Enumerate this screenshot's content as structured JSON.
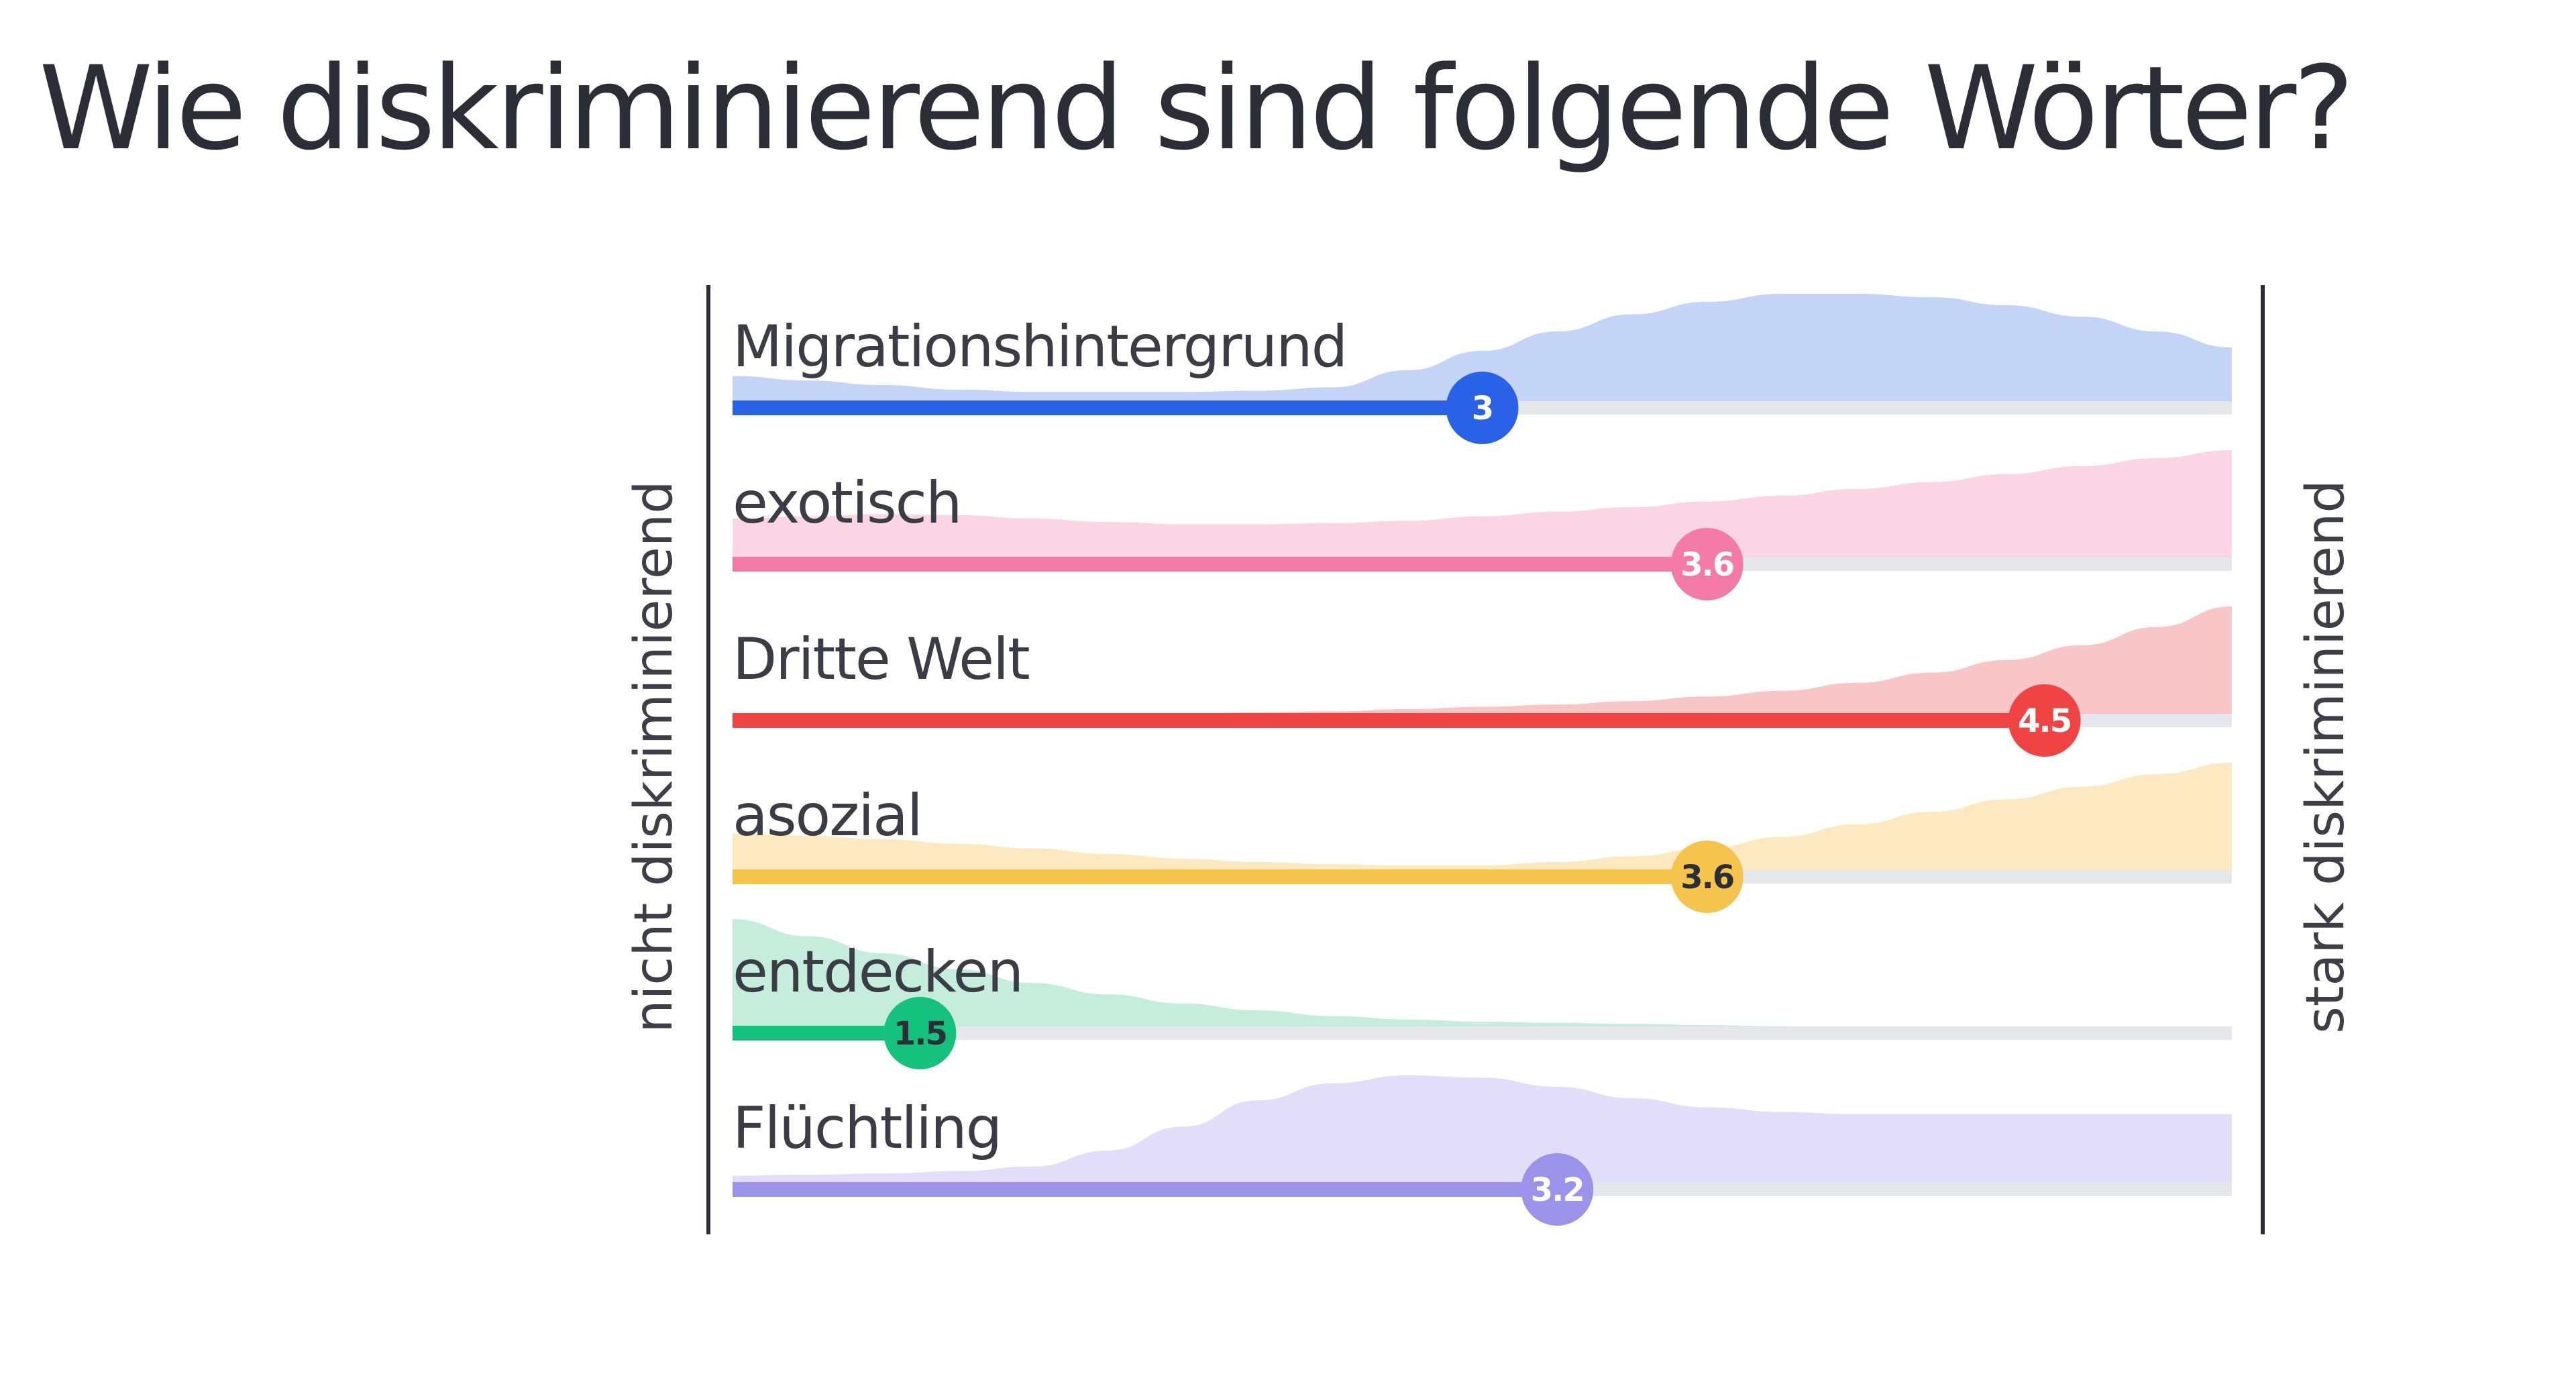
{
  "title": "Wie diskriminierend sind folgende Wörter?",
  "chart_data": {
    "type": "bar",
    "title": "Wie diskriminierend sind folgende Wörter?",
    "scale_min_label": "nicht diskriminierend",
    "scale_max_label": "stark diskriminierend",
    "xlim": [
      1,
      5
    ],
    "items": [
      {
        "label": "Migrationshintergrund",
        "value": 3,
        "value_label": "3",
        "bar_color": "#2962e6",
        "fill_color": "#c3d4f7",
        "marker_text_color": "#ffffff",
        "distribution": [
          0.28,
          0.24,
          0.2,
          0.16,
          0.14,
          0.14,
          0.14,
          0.15,
          0.18,
          0.33,
          0.5,
          0.67,
          0.82,
          0.93,
          1.0,
          1.0,
          0.97,
          0.9,
          0.8,
          0.67,
          0.53
        ]
      },
      {
        "label": "exotisch",
        "value": 3.6,
        "value_label": "3.6",
        "bar_color": "#f27aa5",
        "fill_color": "#fbd5e3",
        "marker_text_color": "#ffffff",
        "distribution": [
          0.4,
          0.42,
          0.44,
          0.43,
          0.4,
          0.37,
          0.35,
          0.35,
          0.36,
          0.38,
          0.42,
          0.46,
          0.5,
          0.55,
          0.6,
          0.66,
          0.72,
          0.79,
          0.86,
          0.93,
          1.0
        ]
      },
      {
        "label": "Dritte Welt",
        "value": 4.5,
        "value_label": "4.5",
        "bar_color": "#f04444",
        "fill_color": "#f8c6c6",
        "marker_text_color": "#ffffff",
        "distribution": [
          0.03,
          0.03,
          0.03,
          0.04,
          0.04,
          0.05,
          0.06,
          0.07,
          0.08,
          0.1,
          0.12,
          0.14,
          0.17,
          0.21,
          0.26,
          0.33,
          0.42,
          0.53,
          0.66,
          0.82,
          1.0
        ]
      },
      {
        "label": "asozial",
        "value": 3.6,
        "value_label": "3.6",
        "bar_color": "#f5c44c",
        "fill_color": "#fde9c1",
        "marker_text_color": "#2b2e36",
        "distribution": [
          0.38,
          0.36,
          0.33,
          0.29,
          0.25,
          0.2,
          0.16,
          0.13,
          0.11,
          0.1,
          0.1,
          0.13,
          0.18,
          0.25,
          0.35,
          0.46,
          0.57,
          0.68,
          0.79,
          0.9,
          1.0
        ]
      },
      {
        "label": "entdecken",
        "value": 1.5,
        "value_label": "1.5",
        "bar_color": "#15c27d",
        "fill_color": "#c6eddb",
        "marker_text_color": "#2b2e36",
        "distribution": [
          1.0,
          0.85,
          0.7,
          0.56,
          0.44,
          0.34,
          0.26,
          0.2,
          0.15,
          0.12,
          0.1,
          0.09,
          0.08,
          0.07,
          0.06,
          0.05,
          0.05,
          0.04,
          0.04,
          0.03,
          0.03
        ]
      },
      {
        "label": "Flüchtling",
        "value": 3.2,
        "value_label": "3.2",
        "bar_color": "#9b93ea",
        "fill_color": "#e2defa",
        "marker_text_color": "#ffffff",
        "distribution": [
          0.12,
          0.13,
          0.14,
          0.16,
          0.2,
          0.34,
          0.55,
          0.78,
          0.93,
          1.0,
          0.98,
          0.9,
          0.8,
          0.72,
          0.68,
          0.66,
          0.66,
          0.66,
          0.66,
          0.66,
          0.66
        ]
      }
    ]
  }
}
